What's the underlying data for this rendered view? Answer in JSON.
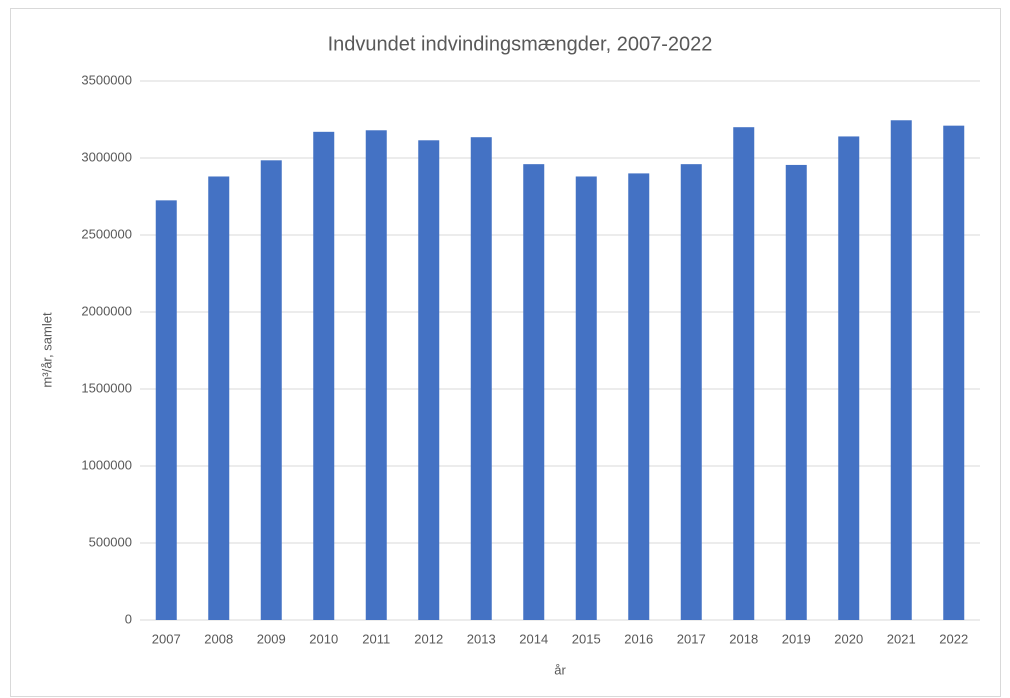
{
  "chart_data": {
    "type": "bar",
    "title": "Indvundet indvindingsmængder, 2007-2022",
    "xlabel": "år",
    "ylabel": "m³/år, samlet",
    "categories": [
      "2007",
      "2008",
      "2009",
      "2010",
      "2011",
      "2012",
      "2013",
      "2014",
      "2015",
      "2016",
      "2017",
      "2018",
      "2019",
      "2020",
      "2021",
      "2022"
    ],
    "values": [
      2725000,
      2880000,
      2985000,
      3170000,
      3180000,
      3115000,
      3135000,
      2960000,
      2880000,
      2900000,
      2960000,
      3200000,
      2955000,
      3140000,
      3245000,
      3210000
    ],
    "color": "#4472c4",
    "ylim": [
      0,
      3500000
    ],
    "yticks": [
      0,
      500000,
      1000000,
      1500000,
      2000000,
      2500000,
      3000000,
      3500000
    ],
    "grid": true
  }
}
